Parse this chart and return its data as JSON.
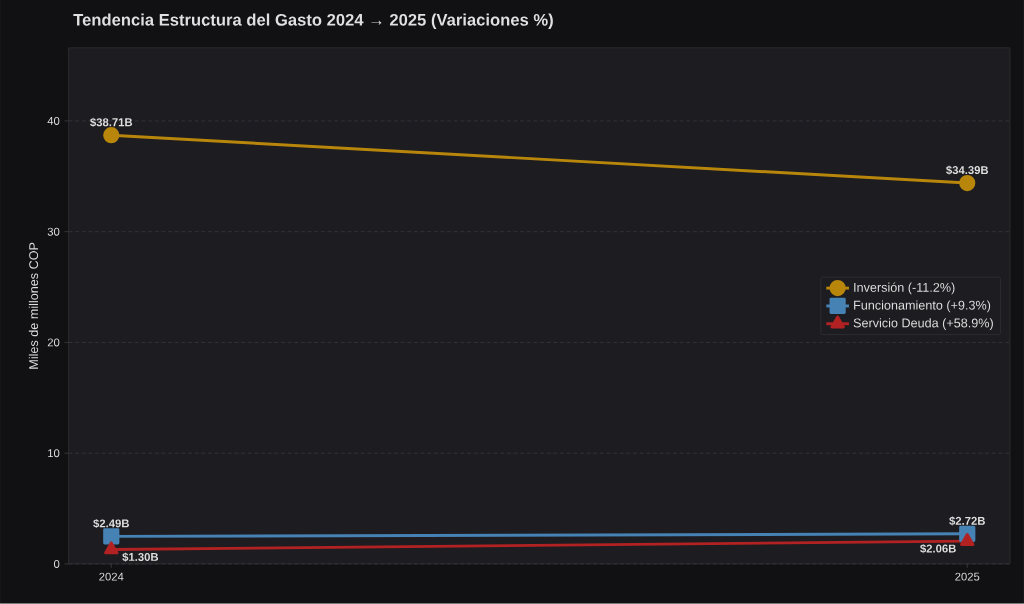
{
  "chart_data": {
    "type": "line",
    "title": "Tendencia Estructura del Gasto 2024 → 2025 (Variaciones %)",
    "ylabel": "Miles de millones COP",
    "x": [
      2024,
      2025
    ],
    "series": [
      {
        "name": "Inversión (-11.2%)",
        "color": "#b8860b",
        "marker": "circle",
        "values": [
          38.71,
          34.39
        ],
        "value_labels": [
          "$38.71B",
          "$34.39B"
        ]
      },
      {
        "name": "Funcionamiento (+9.3%)",
        "color": "#4682b4",
        "marker": "square",
        "values": [
          2.49,
          2.72
        ],
        "value_labels": [
          "$2.49B",
          "$2.72B"
        ]
      },
      {
        "name": "Servicio Deuda (+58.9%)",
        "color": "#b22222",
        "marker": "triangle",
        "values": [
          1.3,
          2.06
        ],
        "value_labels": [
          "$1.30B",
          "$2.06B"
        ]
      }
    ],
    "xlim": [
      2023.95,
      2025.05
    ],
    "xticks": [
      2024,
      2025
    ],
    "ylim": [
      0,
      46.6
    ],
    "yticks": [
      0,
      10,
      20,
      30,
      40
    ],
    "grid": "y",
    "legend": "right",
    "line_style": "solid"
  }
}
